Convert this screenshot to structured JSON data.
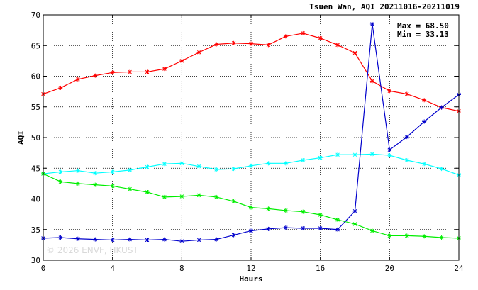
{
  "chart_data": {
    "type": "line",
    "title": "Tsuen Wan, AQI 20211016-20211019",
    "xlabel": "Hours",
    "ylabel": "AQI",
    "xlim": [
      0,
      24
    ],
    "ylim": [
      30,
      70
    ],
    "x_ticks": [
      "0",
      "4",
      "8",
      "12",
      "16",
      "20",
      "24"
    ],
    "y_ticks": [
      "30",
      "35",
      "40",
      "45",
      "50",
      "55",
      "60",
      "65",
      "70"
    ],
    "grid": true,
    "annotations": [
      "Max = 68.50",
      "Min = 33.13"
    ],
    "watermark": "© 2026  ENVF, HKUST",
    "x": [
      0,
      1,
      2,
      3,
      4,
      5,
      6,
      7,
      8,
      9,
      10,
      11,
      12,
      13,
      14,
      15,
      16,
      17,
      18,
      19,
      20,
      21,
      22,
      23,
      24
    ],
    "series": [
      {
        "color": "#ff0000",
        "values": [
          57.1,
          58.1,
          59.5,
          60.1,
          60.6,
          60.7,
          60.7,
          61.2,
          62.5,
          63.9,
          65.2,
          65.4,
          65.3,
          65.1,
          66.5,
          67.0,
          66.2,
          65.1,
          63.8,
          59.2,
          57.6,
          57.1,
          56.1,
          54.9,
          54.3
        ]
      },
      {
        "color": "#00ffff",
        "values": [
          44.1,
          44.4,
          44.6,
          44.2,
          44.4,
          44.7,
          45.2,
          45.7,
          45.8,
          45.3,
          44.8,
          44.9,
          45.4,
          45.8,
          45.8,
          46.3,
          46.7,
          47.2,
          47.2,
          47.3,
          47.1,
          46.3,
          45.7,
          44.9,
          43.9
        ]
      },
      {
        "color": "#00ee00",
        "values": [
          44.1,
          42.8,
          42.5,
          42.3,
          42.1,
          41.6,
          41.1,
          40.3,
          40.4,
          40.6,
          40.3,
          39.6,
          38.6,
          38.4,
          38.1,
          37.9,
          37.4,
          36.6,
          35.9,
          34.8,
          34.0,
          34.0,
          33.9,
          33.7,
          33.6
        ]
      },
      {
        "color": "#0000cc",
        "values": [
          33.6,
          33.7,
          33.5,
          33.4,
          33.3,
          33.4,
          33.3,
          33.4,
          33.1,
          33.3,
          33.4,
          34.1,
          34.8,
          35.1,
          35.3,
          35.2,
          35.2,
          35.0,
          38.0,
          68.5,
          48.0,
          50.1,
          52.6,
          54.9,
          57.0
        ]
      }
    ]
  }
}
